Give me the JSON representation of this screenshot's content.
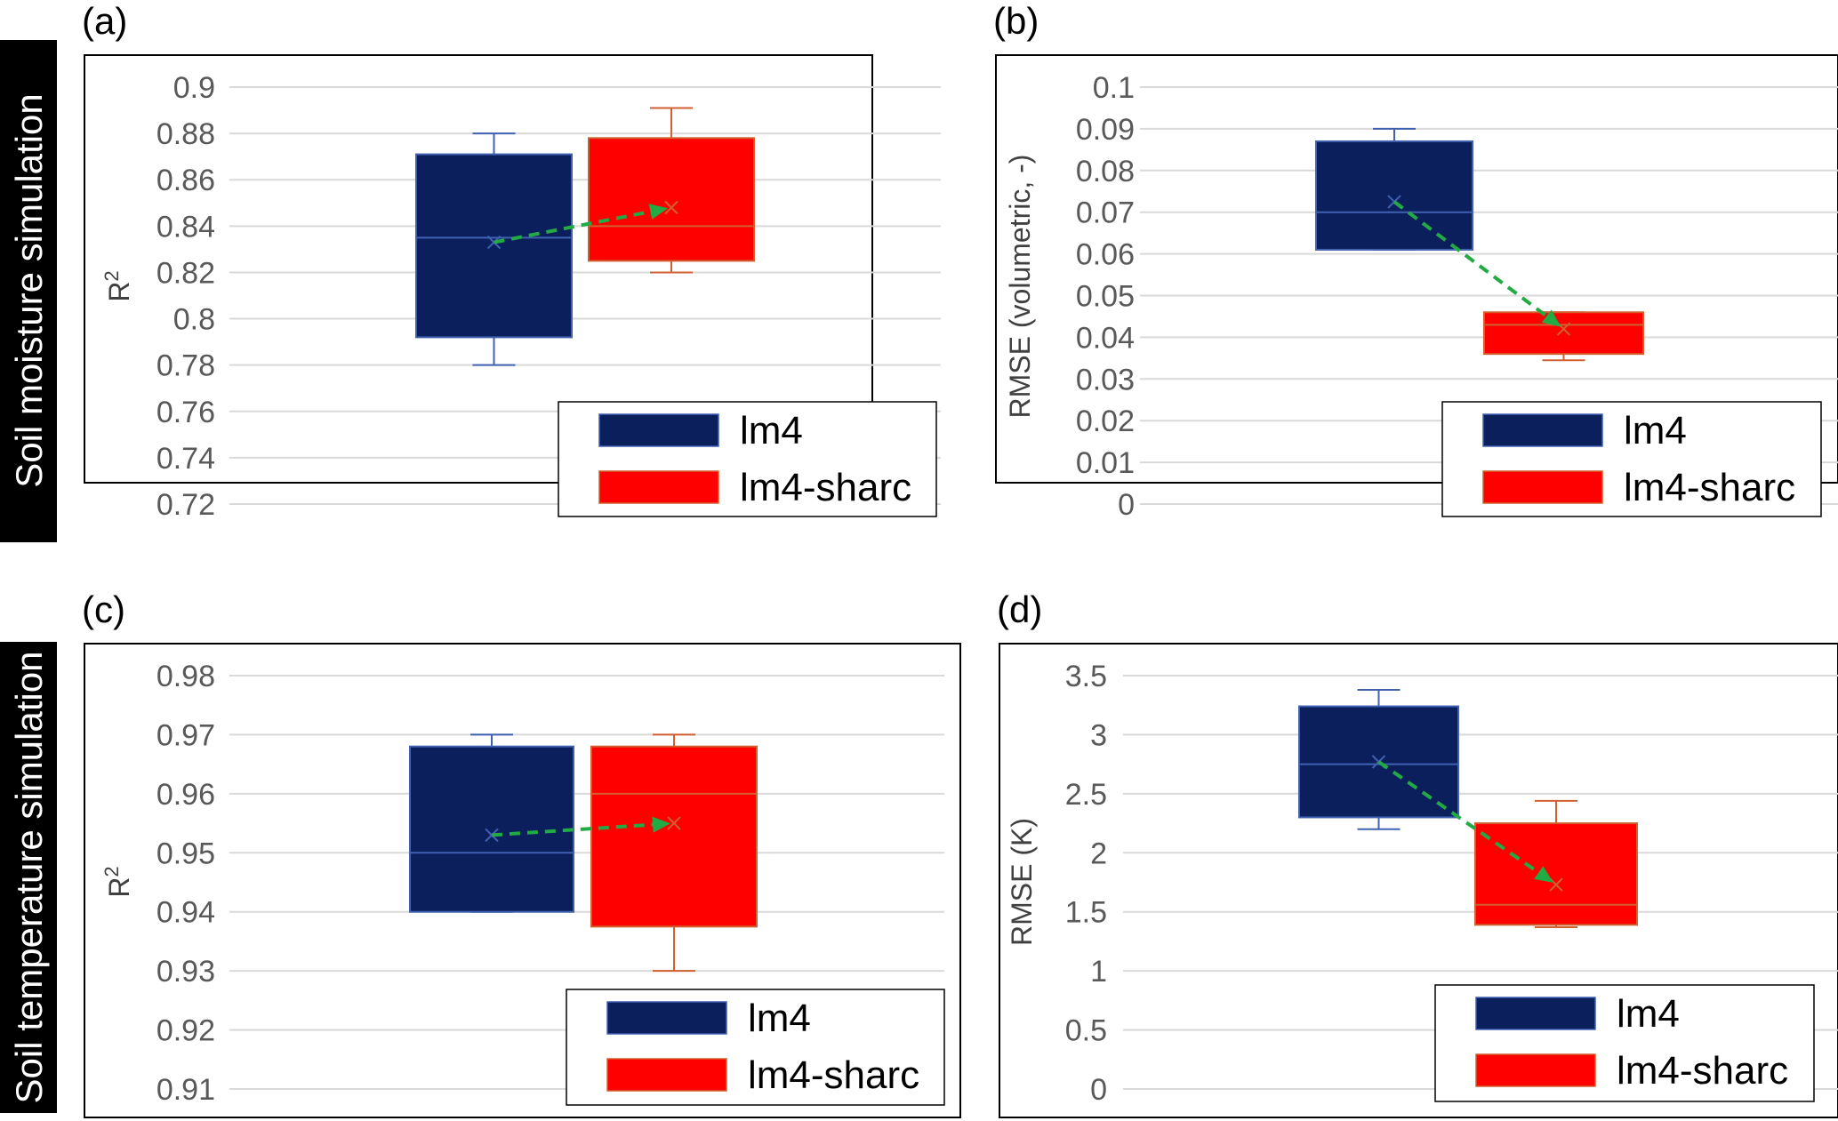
{
  "row_labels": [
    "Soil moisture simulation",
    "Soil temperature simulation"
  ],
  "legend": {
    "series": [
      "lm4",
      "lm4-sharc"
    ]
  },
  "colors": {
    "lm4": "#0a1f5c",
    "lm4-sharc": "#ff0000",
    "lm4_line": "#4060b0",
    "sharc_line": "#d06030",
    "arrow": "#22aa44"
  },
  "chart_data": [
    {
      "type": "box",
      "panel": "(a)",
      "ylabel": "R2",
      "ylim": [
        0.72,
        0.9
      ],
      "yticks": [
        "0.9",
        "0.88",
        "0.86",
        "0.84",
        "0.82",
        "0.8",
        "0.78",
        "0.76",
        "0.74",
        "0.72"
      ],
      "series": [
        {
          "name": "lm4",
          "min": 0.78,
          "q1": 0.792,
          "median": 0.835,
          "q3": 0.871,
          "max": 0.88,
          "mean": 0.833
        },
        {
          "name": "lm4-sharc",
          "min": 0.82,
          "q1": 0.825,
          "median": 0.84,
          "q3": 0.878,
          "max": 0.891,
          "mean": 0.848
        }
      ],
      "legend_position": "bottom-right"
    },
    {
      "type": "box",
      "panel": "(b)",
      "ylabel": "RMSE (volumetric, -)",
      "ylim": [
        0,
        0.1
      ],
      "yticks": [
        "0.1",
        "0.09",
        "0.08",
        "0.07",
        "0.06",
        "0.05",
        "0.04",
        "0.03",
        "0.02",
        "0.01",
        "0"
      ],
      "series": [
        {
          "name": "lm4",
          "min": 0.061,
          "q1": 0.061,
          "median": 0.07,
          "q3": 0.087,
          "max": 0.09,
          "mean": 0.0725
        },
        {
          "name": "lm4-sharc",
          "min": 0.0345,
          "q1": 0.036,
          "median": 0.043,
          "q3": 0.046,
          "max": 0.046,
          "mean": 0.042
        }
      ],
      "legend_position": "bottom-right"
    },
    {
      "type": "box",
      "panel": "(c)",
      "ylabel": "R2",
      "ylim": [
        0.91,
        0.98
      ],
      "yticks": [
        "0.98",
        "0.97",
        "0.96",
        "0.95",
        "0.94",
        "0.93",
        "0.92",
        "0.91"
      ],
      "series": [
        {
          "name": "lm4",
          "min": 0.94,
          "q1": 0.94,
          "median": 0.95,
          "q3": 0.968,
          "max": 0.97,
          "mean": 0.953
        },
        {
          "name": "lm4-sharc",
          "min": 0.93,
          "q1": 0.9375,
          "median": 0.96,
          "q3": 0.968,
          "max": 0.97,
          "mean": 0.955
        }
      ],
      "legend_position": "bottom-right"
    },
    {
      "type": "box",
      "panel": "(d)",
      "ylabel": "RMSE (K)",
      "ylim": [
        0,
        3.5
      ],
      "yticks": [
        "3.5",
        "3",
        "2.5",
        "2",
        "1.5",
        "1",
        "0.5",
        "0"
      ],
      "series": [
        {
          "name": "lm4",
          "min": 2.2,
          "q1": 2.3,
          "median": 2.75,
          "q3": 3.24,
          "max": 3.38,
          "mean": 2.77
        },
        {
          "name": "lm4-sharc",
          "min": 1.37,
          "q1": 1.39,
          "median": 1.56,
          "q3": 2.25,
          "max": 2.44,
          "mean": 1.73
        }
      ],
      "legend_position": "bottom-right"
    }
  ]
}
